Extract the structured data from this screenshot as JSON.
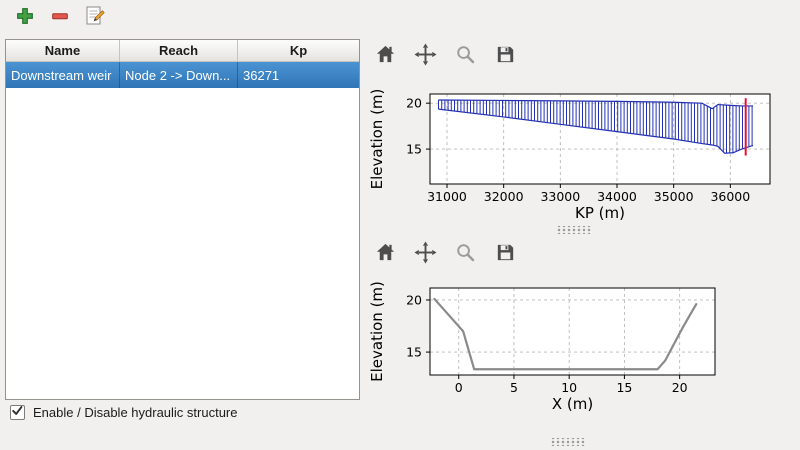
{
  "window": {
    "background": "#f1f0ee"
  },
  "main_toolbar": {
    "buttons": [
      {
        "name": "add-structure",
        "icon": "plus-icon"
      },
      {
        "name": "remove-structure",
        "icon": "minus-icon"
      },
      {
        "name": "edit-structure",
        "icon": "edit-icon"
      }
    ]
  },
  "structures_table": {
    "columns": [
      "Name",
      "Reach",
      "Kp"
    ],
    "rows": [
      {
        "name": "Downstream weir",
        "reach": "Node 2 -> Down...",
        "kp": "36271"
      }
    ],
    "selected_row_index": 0,
    "selection_color": "#3b83c6"
  },
  "enable_checkbox": {
    "label": "Enable / Disable hydraulic structure",
    "checked": true
  },
  "plot_toolbar": {
    "icons": [
      "home-icon",
      "pan-icon",
      "zoom-icon",
      "save-icon"
    ]
  },
  "chart_data": [
    {
      "type": "area",
      "title": "",
      "xlabel": "KP (m)",
      "ylabel": "Elevation (m)",
      "xlim": [
        30700,
        36700
      ],
      "ylim": [
        11.2,
        21.0
      ],
      "xticks": [
        31000,
        32000,
        33000,
        34000,
        35000,
        36000
      ],
      "yticks": [
        15,
        20
      ],
      "grid": true,
      "band": {
        "x": [
          30850,
          32000,
          33000,
          34000,
          35000,
          35500,
          35680,
          35780,
          35900,
          36050,
          36200,
          36400
        ],
        "top": [
          20.35,
          20.3,
          20.25,
          20.2,
          20.1,
          20.0,
          19.4,
          19.85,
          19.8,
          19.75,
          19.7,
          19.7
        ],
        "bottom": [
          19.35,
          18.5,
          17.7,
          16.9,
          16.1,
          15.6,
          15.45,
          15.3,
          14.55,
          14.6,
          15.0,
          15.4
        ]
      },
      "hatch_color": "#2330b4",
      "marker_line": {
        "x": 36271,
        "y_from": 14.3,
        "y_to": 20.55,
        "color": "#e8112d"
      }
    },
    {
      "type": "line",
      "title": "",
      "xlabel": "X (m)",
      "ylabel": "Elevation (m)",
      "xlim": [
        -2.6,
        23.2
      ],
      "ylim": [
        12.8,
        21.15
      ],
      "xticks": [
        0,
        5,
        10,
        15,
        20
      ],
      "yticks": [
        15,
        20
      ],
      "grid": true,
      "series": [
        {
          "name": "cross-section",
          "x": [
            -2.2,
            0.4,
            1.4,
            18.0,
            18.7,
            20.3,
            21.5
          ],
          "y": [
            20.1,
            17.0,
            13.35,
            13.35,
            14.2,
            17.4,
            19.6
          ],
          "color": "#8a8a8a",
          "width": 2.2
        }
      ]
    }
  ]
}
